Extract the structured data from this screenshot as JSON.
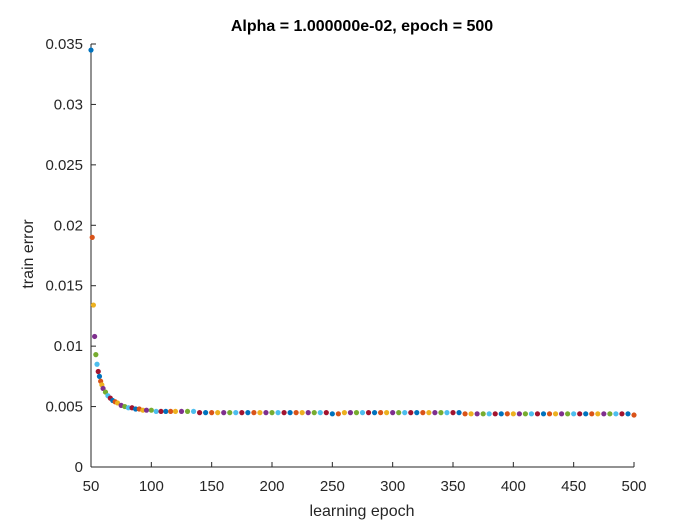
{
  "chart_data": {
    "type": "scatter",
    "title": "Alpha = 1.000000e-02, epoch = 500",
    "xlabel": "learning epoch",
    "ylabel": "train error",
    "xlim": [
      50,
      500
    ],
    "ylim": [
      0,
      0.035
    ],
    "xticks": [
      "50",
      "100",
      "150",
      "200",
      "250",
      "300",
      "350",
      "400",
      "450",
      "500"
    ],
    "yticks": [
      "0",
      "0.005",
      "0.01",
      "0.015",
      "0.02",
      "0.025",
      "0.03",
      "0.035"
    ],
    "grid": false,
    "legend": "none",
    "colors": [
      "#0072BD",
      "#D95319",
      "#EDB120",
      "#7E2F8E",
      "#77AC30",
      "#4DBEEE",
      "#A2142F"
    ],
    "x": [
      50,
      51,
      52,
      53,
      54,
      55,
      56,
      57,
      58,
      59,
      60,
      62,
      64,
      66,
      68,
      70,
      72,
      75,
      78,
      81,
      84,
      87,
      90,
      93,
      96,
      100,
      104,
      108,
      112,
      116,
      120,
      125,
      130,
      135,
      140,
      145,
      150,
      155,
      160,
      165,
      170,
      175,
      180,
      185,
      190,
      195,
      200,
      205,
      210,
      215,
      220,
      225,
      230,
      235,
      240,
      245,
      250,
      255,
      260,
      265,
      270,
      275,
      280,
      285,
      290,
      295,
      300,
      305,
      310,
      315,
      320,
      325,
      330,
      335,
      340,
      345,
      350,
      355,
      360,
      365,
      370,
      375,
      380,
      385,
      390,
      395,
      400,
      405,
      410,
      415,
      420,
      425,
      430,
      435,
      440,
      445,
      450,
      455,
      460,
      465,
      470,
      475,
      480,
      485,
      490,
      495,
      500
    ],
    "y": [
      0.0345,
      0.019,
      0.0134,
      0.0108,
      0.0093,
      0.0085,
      0.0079,
      0.0075,
      0.0071,
      0.0068,
      0.0065,
      0.0062,
      0.0059,
      0.0057,
      0.0055,
      0.0054,
      0.0053,
      0.0051,
      0.005,
      0.0049,
      0.0049,
      0.0048,
      0.0048,
      0.0047,
      0.0047,
      0.0047,
      0.0046,
      0.0046,
      0.0046,
      0.0046,
      0.0046,
      0.0046,
      0.0046,
      0.0046,
      0.0045,
      0.0045,
      0.0045,
      0.0045,
      0.0045,
      0.0045,
      0.0045,
      0.0045,
      0.0045,
      0.0045,
      0.0045,
      0.0045,
      0.0045,
      0.0045,
      0.0045,
      0.0045,
      0.0045,
      0.0045,
      0.0045,
      0.0045,
      0.0045,
      0.0045,
      0.0044,
      0.0044,
      0.0045,
      0.0045,
      0.0045,
      0.0045,
      0.0045,
      0.0045,
      0.0045,
      0.0045,
      0.0045,
      0.0045,
      0.0045,
      0.0045,
      0.0045,
      0.0045,
      0.0045,
      0.0045,
      0.0045,
      0.0045,
      0.0045,
      0.0045,
      0.0044,
      0.0044,
      0.0044,
      0.0044,
      0.0044,
      0.0044,
      0.0044,
      0.0044,
      0.0044,
      0.0044,
      0.0044,
      0.0044,
      0.0044,
      0.0044,
      0.0044,
      0.0044,
      0.0044,
      0.0044,
      0.0044,
      0.0044,
      0.0044,
      0.0044,
      0.0044,
      0.0044,
      0.0044,
      0.0044,
      0.0044,
      0.0044,
      0.0043
    ]
  }
}
